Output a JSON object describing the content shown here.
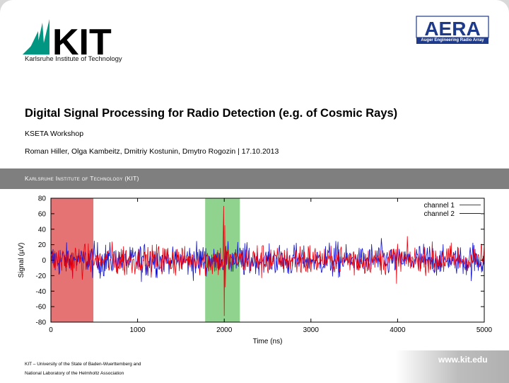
{
  "header": {
    "kit_logo_text": "KIT",
    "kit_subtitle": "Karlsruhe Institute of Technology",
    "aera_logo_text": "AERA",
    "aera_subtitle": "Auger Engineering Radio Array"
  },
  "slide": {
    "title": "Digital Signal Processing for Radio Detection (e.g. of Cosmic Rays)",
    "subtitle": "KSETA Workshop",
    "authors": "Roman Hiller, Olga Kambeitz, Dmitriy Kostunin, Dmytro Rogozin | 17.10.2013",
    "band_text": "Karlsruhe Institute of Technology (KIT)"
  },
  "footer": {
    "line1": "KIT – University of the State of Baden-Wuerttemberg and",
    "line2": "National Laboratory of the Helmholtz Association",
    "url": "www.kit.edu"
  },
  "colors": {
    "channel1": "#e8000b",
    "channel2": "#1010d0",
    "region_noise": "#e57373",
    "region_signal": "#8fd38f",
    "band": "#7f7f7f"
  },
  "chart_data": {
    "type": "line",
    "xlabel": "Time (ns)",
    "ylabel": "Signal (µV)",
    "xlim": [
      0,
      5000
    ],
    "ylim": [
      -80,
      80
    ],
    "x_ticks": [
      0,
      1000,
      2000,
      3000,
      4000,
      5000
    ],
    "y_ticks": [
      -80,
      -60,
      -40,
      -20,
      0,
      20,
      40,
      60,
      80
    ],
    "legend_position": "top-right",
    "grid": false,
    "sample_step_ns": 6.25,
    "noise_amplitude_uV": 40,
    "regions": [
      {
        "x_start": 0,
        "x_end": 490,
        "color": "#e57373"
      },
      {
        "x_start": 1780,
        "x_end": 2180,
        "color": "#8fd38f"
      }
    ],
    "pulse": {
      "x": 2000,
      "peak_max": 70,
      "peak_min": -72
    },
    "series": [
      {
        "name": "channel 1",
        "color": "#e8000b"
      },
      {
        "name": "channel 2",
        "color": "#1010d0"
      }
    ]
  }
}
